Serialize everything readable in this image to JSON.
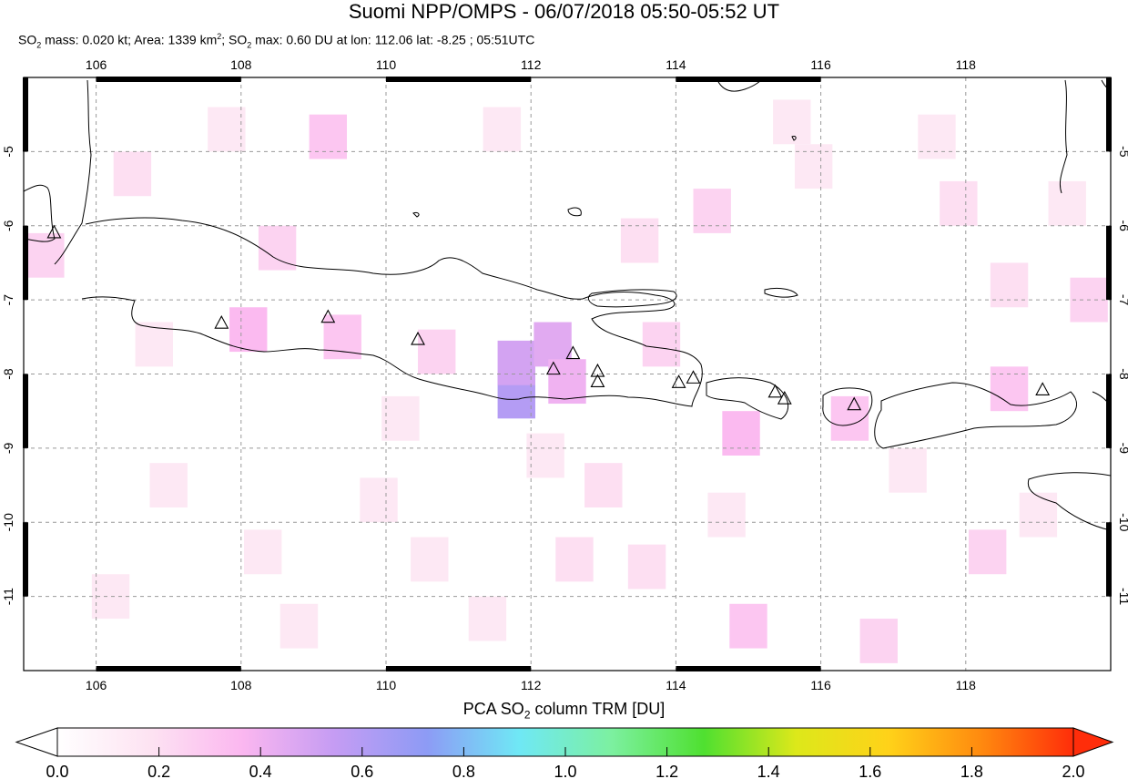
{
  "title": "Suomi NPP/OMPS - 06/07/2018 05:50-05:52 UT",
  "subtitle": {
    "mass_label": "SO",
    "mass_sub": "2",
    "mass_text": " mass: 0.020 kt; Area: 1339 km",
    "area_sup": "2",
    "max_label": "; SO",
    "max_sub": "2",
    "max_text": " max: 0.60 DU at lon: 112.06 lat: -8.25 ; 05:51UTC"
  },
  "map": {
    "lon_range": [
      105.0,
      120.0
    ],
    "lat_range": [
      -12.0,
      -4.0
    ],
    "lon_ticks": [
      106,
      108,
      110,
      112,
      114,
      116,
      118
    ],
    "lon_tick_labels": [
      "106",
      "108",
      "110",
      "112",
      "114",
      "116",
      "118"
    ],
    "lat_ticks": [
      -5,
      -6,
      -7,
      -8,
      -9,
      -10,
      -11
    ],
    "lat_tick_labels": [
      "-5",
      "-6",
      "-7",
      "-8",
      "-9",
      "-10",
      "-11"
    ],
    "grid": "dashed",
    "volcanoes": [
      {
        "lon": 105.42,
        "lat": -6.1
      },
      {
        "lon": 107.73,
        "lat": -7.32
      },
      {
        "lon": 109.2,
        "lat": -7.24
      },
      {
        "lon": 110.44,
        "lat": -7.54
      },
      {
        "lon": 112.31,
        "lat": -7.94
      },
      {
        "lon": 112.58,
        "lat": -7.73
      },
      {
        "lon": 112.92,
        "lat": -7.97
      },
      {
        "lon": 112.92,
        "lat": -8.11
      },
      {
        "lon": 114.04,
        "lat": -8.12
      },
      {
        "lon": 114.24,
        "lat": -8.06
      },
      {
        "lon": 115.37,
        "lat": -8.25
      },
      {
        "lon": 115.5,
        "lat": -8.34
      },
      {
        "lon": 116.46,
        "lat": -8.42
      },
      {
        "lon": 119.06,
        "lat": -8.22
      }
    ],
    "pixels": [
      {
        "lon": 111.8,
        "lat": -8.3,
        "du": 0.6
      },
      {
        "lon": 111.8,
        "lat": -7.85,
        "du": 0.5
      },
      {
        "lon": 112.3,
        "lat": -7.6,
        "du": 0.45
      },
      {
        "lon": 112.5,
        "lat": -8.1,
        "du": 0.4
      },
      {
        "lon": 108.1,
        "lat": -7.4,
        "du": 0.35
      },
      {
        "lon": 109.4,
        "lat": -7.5,
        "du": 0.3
      },
      {
        "lon": 110.7,
        "lat": -7.7,
        "du": 0.25
      },
      {
        "lon": 114.9,
        "lat": -8.8,
        "du": 0.35
      },
      {
        "lon": 115.0,
        "lat": -11.4,
        "du": 0.3
      },
      {
        "lon": 116.4,
        "lat": -8.6,
        "du": 0.3
      },
      {
        "lon": 118.6,
        "lat": -8.2,
        "du": 0.3
      },
      {
        "lon": 119.7,
        "lat": -7.0,
        "du": 0.25
      },
      {
        "lon": 113.5,
        "lat": -6.2,
        "du": 0.2
      },
      {
        "lon": 114.5,
        "lat": -5.8,
        "du": 0.25
      },
      {
        "lon": 109.2,
        "lat": -4.8,
        "du": 0.3
      },
      {
        "lon": 108.5,
        "lat": -6.3,
        "du": 0.25
      },
      {
        "lon": 106.5,
        "lat": -5.3,
        "du": 0.2
      },
      {
        "lon": 105.3,
        "lat": -6.4,
        "du": 0.25
      },
      {
        "lon": 113.8,
        "lat": -7.6,
        "du": 0.25
      },
      {
        "lon": 113.6,
        "lat": -10.6,
        "du": 0.2
      },
      {
        "lon": 112.6,
        "lat": -10.5,
        "du": 0.2
      },
      {
        "lon": 116.8,
        "lat": -11.6,
        "du": 0.25
      },
      {
        "lon": 118.3,
        "lat": -10.4,
        "du": 0.25
      },
      {
        "lon": 107.0,
        "lat": -9.5,
        "du": 0.15
      },
      {
        "lon": 110.6,
        "lat": -10.5,
        "du": 0.15
      },
      {
        "lon": 115.9,
        "lat": -5.2,
        "du": 0.15
      },
      {
        "lon": 117.6,
        "lat": -4.8,
        "du": 0.15
      },
      {
        "lon": 119.4,
        "lat": -5.7,
        "du": 0.15
      },
      {
        "lon": 118.6,
        "lat": -6.8,
        "du": 0.2
      },
      {
        "lon": 106.2,
        "lat": -11.0,
        "du": 0.15
      },
      {
        "lon": 108.8,
        "lat": -11.4,
        "du": 0.15
      },
      {
        "lon": 111.4,
        "lat": -11.3,
        "du": 0.15
      },
      {
        "lon": 117.2,
        "lat": -9.3,
        "du": 0.15
      },
      {
        "lon": 112.2,
        "lat": -9.1,
        "du": 0.15
      },
      {
        "lon": 110.2,
        "lat": -8.6,
        "du": 0.15
      },
      {
        "lon": 106.8,
        "lat": -7.6,
        "du": 0.15
      },
      {
        "lon": 107.8,
        "lat": -4.7,
        "du": 0.15
      },
      {
        "lon": 111.6,
        "lat": -4.7,
        "du": 0.15
      },
      {
        "lon": 113.0,
        "lat": -9.5,
        "du": 0.2
      },
      {
        "lon": 114.7,
        "lat": -9.9,
        "du": 0.15
      },
      {
        "lon": 115.6,
        "lat": -4.6,
        "du": 0.15
      },
      {
        "lon": 117.9,
        "lat": -5.7,
        "du": 0.2
      },
      {
        "lon": 119.0,
        "lat": -9.9,
        "du": 0.15
      },
      {
        "lon": 109.9,
        "lat": -9.7,
        "du": 0.15
      },
      {
        "lon": 108.3,
        "lat": -10.4,
        "du": 0.15
      }
    ]
  },
  "colorbar": {
    "label_pre": "PCA SO",
    "label_sub": "2",
    "label_post": " column TRM [DU]",
    "min": 0.0,
    "max": 2.0,
    "tick_labels": [
      "0.0",
      "0.2",
      "0.4",
      "0.6",
      "0.8",
      "1.0",
      "1.2",
      "1.4",
      "1.6",
      "1.8",
      "2.0"
    ],
    "stops": [
      "#ffffff",
      "#fde3f2",
      "#fbb7f0",
      "#c59cf3",
      "#8d9bf5",
      "#6fe8f5",
      "#7cf0a0",
      "#4fe030",
      "#dde81a",
      "#ffd219",
      "#ff8a0f",
      "#ff2d0a"
    ]
  }
}
